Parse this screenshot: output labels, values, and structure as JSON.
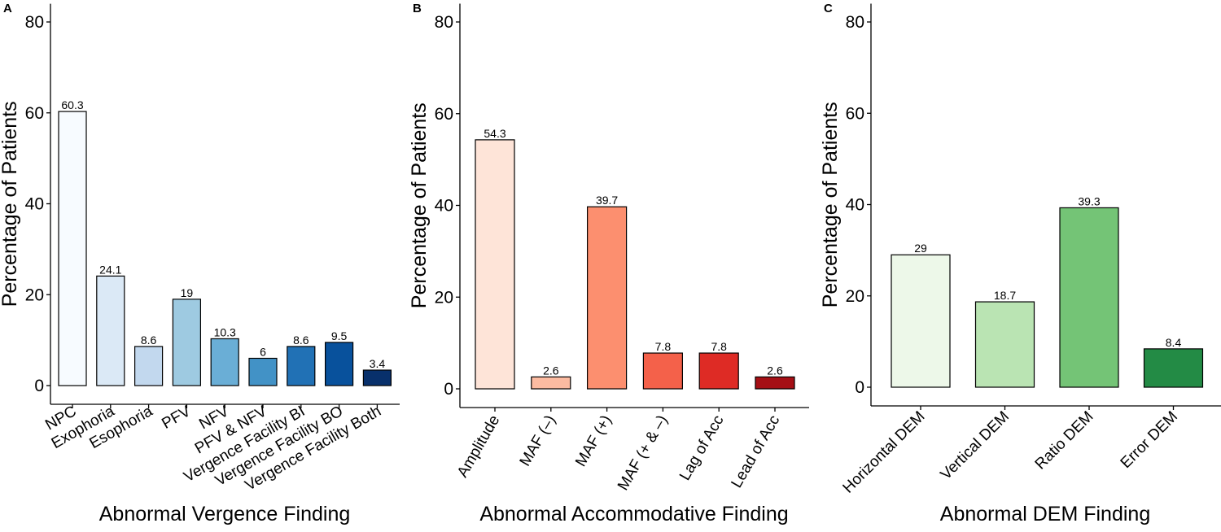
{
  "chart_data": [
    {
      "type": "bar",
      "panel_label": "A",
      "title": "",
      "xlabel": "Abnormal Vergence Finding",
      "ylabel": "Percentage of Patients",
      "ylim": [
        0,
        84
      ],
      "yticks": [
        0,
        20,
        40,
        60,
        80
      ],
      "grid": false,
      "categories": [
        "NPC",
        "Exophoria",
        "Esophoria",
        "PFV",
        "NFV",
        "PFV & NFV",
        "Vergence Facility BI",
        "Vergence Facility BO",
        "Vergence Facility Both"
      ],
      "values": [
        60.3,
        24.1,
        8.6,
        19,
        10.3,
        6,
        8.6,
        9.5,
        3.4
      ],
      "value_labels": [
        "60.3",
        "24.1",
        "8.6",
        "19",
        "10.3",
        "6",
        "8.6",
        "9.5",
        "3.4"
      ],
      "colors": [
        "#f7fbff",
        "#dbe9f6",
        "#c2d8ee",
        "#9ecae1",
        "#6aaed6",
        "#4292c6",
        "#2171b5",
        "#08519c",
        "#08306b"
      ]
    },
    {
      "type": "bar",
      "panel_label": "B",
      "title": "",
      "xlabel": "Abnormal Accommodative Finding",
      "ylabel": "Percentage of Patients",
      "ylim": [
        0,
        84
      ],
      "yticks": [
        0,
        20,
        40,
        60,
        80
      ],
      "grid": false,
      "categories": [
        "Amplitude",
        "MAF (–)",
        "MAF (+)",
        "MAF (+ & –)",
        "Lag of Acc",
        "Lead of Acc"
      ],
      "values": [
        54.3,
        2.6,
        39.7,
        7.8,
        7.8,
        2.6
      ],
      "value_labels": [
        "54.3",
        "2.6",
        "39.7",
        "7.8",
        "7.8",
        "2.6"
      ],
      "colors": [
        "#fee4d8",
        "#fcbba1",
        "#fc8f6f",
        "#f4614a",
        "#de2b25",
        "#a50f15"
      ]
    },
    {
      "type": "bar",
      "panel_label": "C",
      "title": "",
      "xlabel": "Abnormal DEM Finding",
      "ylabel": "Percentage of Patients",
      "ylim": [
        0,
        84
      ],
      "yticks": [
        0,
        20,
        40,
        60,
        80
      ],
      "grid": false,
      "categories": [
        "Horizontal DEM",
        "Vertical DEM",
        "Ratio DEM",
        "Error DEM"
      ],
      "values": [
        29,
        18.7,
        39.3,
        8.4
      ],
      "value_labels": [
        "29",
        "18.7",
        "39.3",
        "8.4"
      ],
      "colors": [
        "#edf8e9",
        "#bae4b3",
        "#74c476",
        "#238b45"
      ]
    }
  ]
}
